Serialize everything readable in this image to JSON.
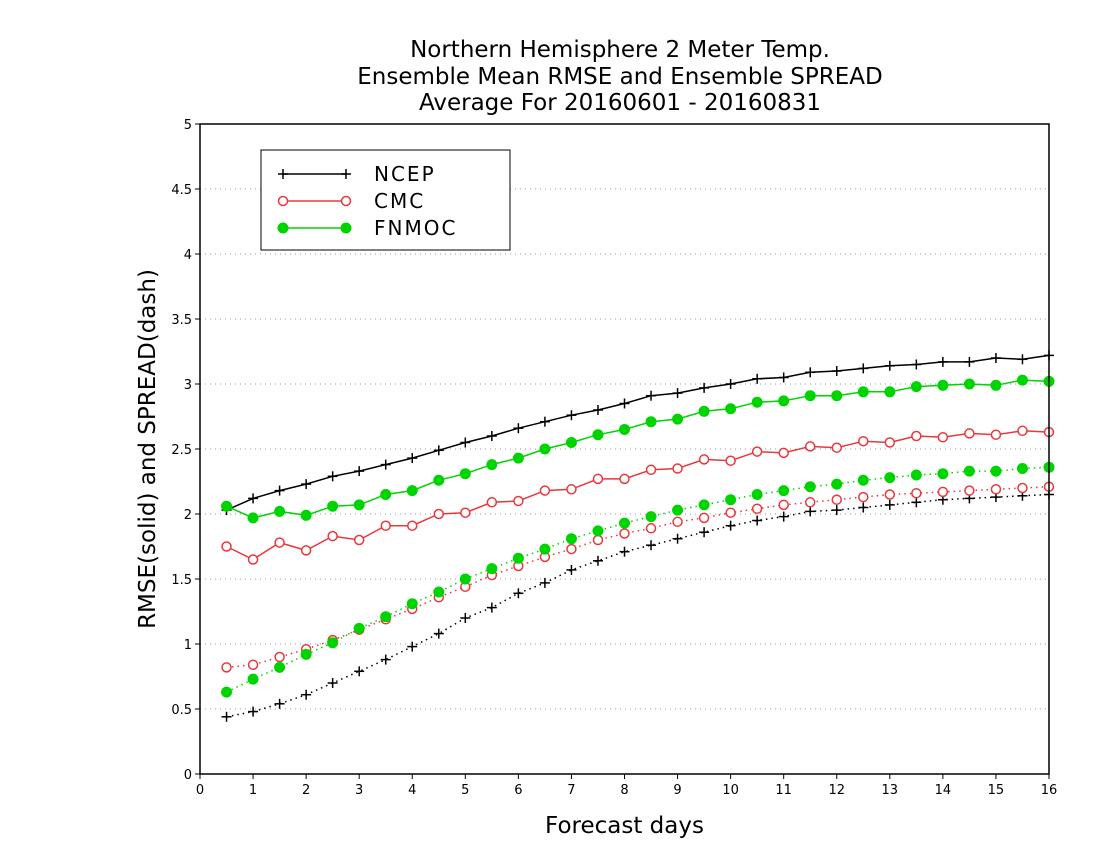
{
  "chart_data": {
    "type": "line",
    "title_lines": [
      "Northern Hemisphere 2 Meter Temp.",
      "Ensemble Mean RMSE and Ensemble SPREAD",
      "Average For 20160601 - 20160831"
    ],
    "xlabel": "Forecast days",
    "ylabel": "RMSE(solid) and SPREAD(dash)",
    "xlim": [
      0,
      16
    ],
    "ylim": [
      0,
      5
    ],
    "x_ticks": [
      0,
      1,
      2,
      3,
      4,
      5,
      6,
      7,
      8,
      9,
      10,
      11,
      12,
      13,
      14,
      15,
      16
    ],
    "y_ticks": [
      0,
      0.5,
      1,
      1.5,
      2,
      2.5,
      3,
      3.5,
      4,
      4.5,
      5
    ],
    "y_tick_labels": [
      "0",
      "0.5",
      "1",
      "1.5",
      "2",
      "2.5",
      "3",
      "3.5",
      "4",
      "4.5",
      "5"
    ],
    "grid": "horizontal-dotted",
    "legend_position": "top-left",
    "x": [
      0.5,
      1,
      1.5,
      2,
      2.5,
      3,
      3.5,
      4,
      4.5,
      5,
      5.5,
      6,
      6.5,
      7,
      7.5,
      8,
      8.5,
      9,
      9.5,
      10,
      10.5,
      11,
      11.5,
      12,
      12.5,
      13,
      13.5,
      14,
      14.5,
      15,
      15.5,
      16
    ],
    "series": [
      {
        "name": "NCEP",
        "color": "#000000",
        "marker": "plus",
        "legend": true,
        "style": "solid",
        "values": [
          2.03,
          2.12,
          2.18,
          2.23,
          2.29,
          2.33,
          2.38,
          2.43,
          2.49,
          2.55,
          2.6,
          2.66,
          2.71,
          2.76,
          2.8,
          2.85,
          2.91,
          2.93,
          2.97,
          3.0,
          3.04,
          3.05,
          3.09,
          3.1,
          3.12,
          3.14,
          3.15,
          3.17,
          3.17,
          3.2,
          3.19,
          3.22
        ]
      },
      {
        "name": "CMC",
        "color": "#e8383d",
        "marker": "open-circle",
        "legend": true,
        "style": "solid",
        "values": [
          1.75,
          1.65,
          1.78,
          1.72,
          1.83,
          1.8,
          1.91,
          1.91,
          2.0,
          2.01,
          2.09,
          2.1,
          2.18,
          2.19,
          2.27,
          2.27,
          2.34,
          2.35,
          2.42,
          2.41,
          2.48,
          2.47,
          2.52,
          2.51,
          2.56,
          2.55,
          2.6,
          2.59,
          2.62,
          2.61,
          2.64,
          2.63
        ]
      },
      {
        "name": "FNMOC",
        "color": "#00d400",
        "marker": "filled-circle",
        "legend": true,
        "style": "solid",
        "values": [
          2.06,
          1.97,
          2.02,
          1.99,
          2.06,
          2.07,
          2.15,
          2.18,
          2.26,
          2.31,
          2.38,
          2.43,
          2.5,
          2.55,
          2.61,
          2.65,
          2.71,
          2.73,
          2.79,
          2.81,
          2.86,
          2.87,
          2.91,
          2.91,
          2.94,
          2.94,
          2.98,
          2.99,
          3.0,
          2.99,
          3.03,
          3.02
        ]
      },
      {
        "name": "NCEP",
        "color": "#000000",
        "marker": "plus",
        "legend": false,
        "style": "dotted",
        "values": [
          0.44,
          0.48,
          0.54,
          0.61,
          0.7,
          0.79,
          0.88,
          0.98,
          1.08,
          1.2,
          1.28,
          1.39,
          1.47,
          1.57,
          1.64,
          1.71,
          1.76,
          1.81,
          1.86,
          1.91,
          1.95,
          1.98,
          2.02,
          2.03,
          2.05,
          2.07,
          2.09,
          2.11,
          2.12,
          2.13,
          2.14,
          2.15
        ]
      },
      {
        "name": "CMC",
        "color": "#e8383d",
        "marker": "open-circle",
        "legend": false,
        "style": "dotted",
        "values": [
          0.82,
          0.84,
          0.9,
          0.96,
          1.03,
          1.11,
          1.19,
          1.27,
          1.36,
          1.44,
          1.53,
          1.6,
          1.67,
          1.73,
          1.8,
          1.85,
          1.89,
          1.94,
          1.97,
          2.01,
          2.04,
          2.07,
          2.09,
          2.11,
          2.13,
          2.15,
          2.16,
          2.17,
          2.18,
          2.19,
          2.2,
          2.21
        ]
      },
      {
        "name": "FNMOC",
        "color": "#00d400",
        "marker": "filled-circle",
        "legend": false,
        "style": "dotted",
        "values": [
          0.63,
          0.73,
          0.82,
          0.92,
          1.01,
          1.12,
          1.21,
          1.31,
          1.4,
          1.5,
          1.58,
          1.66,
          1.73,
          1.81,
          1.87,
          1.93,
          1.98,
          2.03,
          2.07,
          2.11,
          2.15,
          2.18,
          2.21,
          2.23,
          2.26,
          2.28,
          2.3,
          2.31,
          2.33,
          2.33,
          2.35,
          2.36
        ]
      }
    ]
  }
}
